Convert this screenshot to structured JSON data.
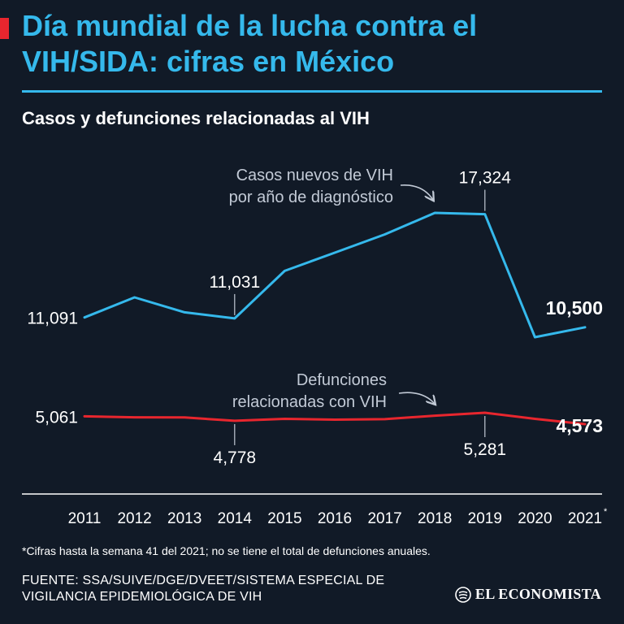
{
  "header": {
    "title": "Día mundial de la lucha contra el VIH/SIDA: cifras en México",
    "subtitle": "Casos y defunciones relacionadas al VIH",
    "accent_color": "#e8262e",
    "title_color": "#35b9ec"
  },
  "chart_data": {
    "type": "line",
    "title": "Casos y defunciones relacionadas al VIH",
    "x": [
      "2011",
      "2012",
      "2013",
      "2014",
      "2015",
      "2016",
      "2017",
      "2018",
      "2019",
      "2020",
      "2021"
    ],
    "x_tick_labels": [
      "2011",
      "2012",
      "2013",
      "2014",
      "2015",
      "2016",
      "2017",
      "2018",
      "2019",
      "2020",
      "2021"
    ],
    "x_tick_footnote_mark": "*",
    "grid": false,
    "series": [
      {
        "name": "Casos nuevos de VIH por año de diagnóstico",
        "color": "#35b9ec",
        "values": [
          11091,
          12300,
          11400,
          11031,
          13900,
          15000,
          16100,
          17400,
          17324,
          9900,
          10500
        ],
        "labels": [
          {
            "index": 0,
            "text": "11,091"
          },
          {
            "index": 3,
            "text": "11,031"
          },
          {
            "index": 8,
            "text": "17,324"
          },
          {
            "index": 10,
            "text": "10,500",
            "bold": true
          }
        ],
        "annotation_lines": [
          "Casos nuevos de VIH",
          "por año de diagnóstico"
        ]
      },
      {
        "name": "Defunciones relacionadas con VIH",
        "color": "#e8262e",
        "values": [
          5061,
          5000,
          4990,
          4778,
          4900,
          4850,
          4880,
          5100,
          5281,
          4900,
          4573
        ],
        "labels": [
          {
            "index": 0,
            "text": "5,061"
          },
          {
            "index": 3,
            "text": "4,778"
          },
          {
            "index": 8,
            "text": "5,281"
          },
          {
            "index": 10,
            "text": "4,573",
            "bold": true
          }
        ],
        "annotation_lines": [
          "Defunciones",
          "relacionadas con VIH"
        ]
      }
    ]
  },
  "footer": {
    "footnote": "*Cifras hasta la semana 41 del 2021; no se tiene el total de defunciones anuales.",
    "source_line1": "FUENTE:  SSA/SUIVE/DGE/DVEET/SISTEMA ESPECIAL DE",
    "source_line2": "VIGILANCIA EPIDEMIOLÓGICA DE VIH",
    "logo_text": "EL ECONOMISTA",
    "logo_icon": "el-economista-logo-icon"
  }
}
